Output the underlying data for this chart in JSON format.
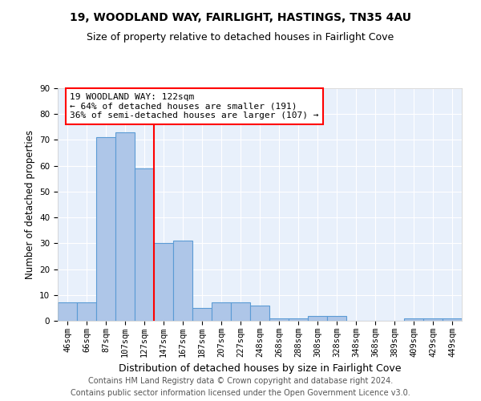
{
  "title1": "19, WOODLAND WAY, FAIRLIGHT, HASTINGS, TN35 4AU",
  "title2": "Size of property relative to detached houses in Fairlight Cove",
  "xlabel": "Distribution of detached houses by size in Fairlight Cove",
  "ylabel": "Number of detached properties",
  "footnote1": "Contains HM Land Registry data © Crown copyright and database right 2024.",
  "footnote2": "Contains public sector information licensed under the Open Government Licence v3.0.",
  "categories": [
    "46sqm",
    "66sqm",
    "87sqm",
    "107sqm",
    "127sqm",
    "147sqm",
    "167sqm",
    "187sqm",
    "207sqm",
    "227sqm",
    "248sqm",
    "268sqm",
    "288sqm",
    "308sqm",
    "328sqm",
    "348sqm",
    "368sqm",
    "389sqm",
    "409sqm",
    "429sqm",
    "449sqm"
  ],
  "values": [
    7,
    7,
    71,
    73,
    59,
    30,
    31,
    5,
    7,
    7,
    6,
    1,
    1,
    2,
    2,
    0,
    0,
    0,
    1,
    1,
    1
  ],
  "bar_color": "#aec6e8",
  "bar_edgecolor": "#5b9bd5",
  "bar_linewidth": 0.8,
  "property_line_x": 4.5,
  "property_line_color": "red",
  "annotation_text": "19 WOODLAND WAY: 122sqm\n← 64% of detached houses are smaller (191)\n36% of semi-detached houses are larger (107) →",
  "annotation_box_color": "white",
  "annotation_box_edgecolor": "red",
  "ylim": [
    0,
    90
  ],
  "yticks": [
    0,
    10,
    20,
    30,
    40,
    50,
    60,
    70,
    80,
    90
  ],
  "background_color": "#e8f0fb",
  "grid_color": "white",
  "title1_fontsize": 10,
  "title2_fontsize": 9,
  "xlabel_fontsize": 9,
  "ylabel_fontsize": 8.5,
  "tick_fontsize": 7.5,
  "annotation_fontsize": 8,
  "footnote_fontsize": 7
}
